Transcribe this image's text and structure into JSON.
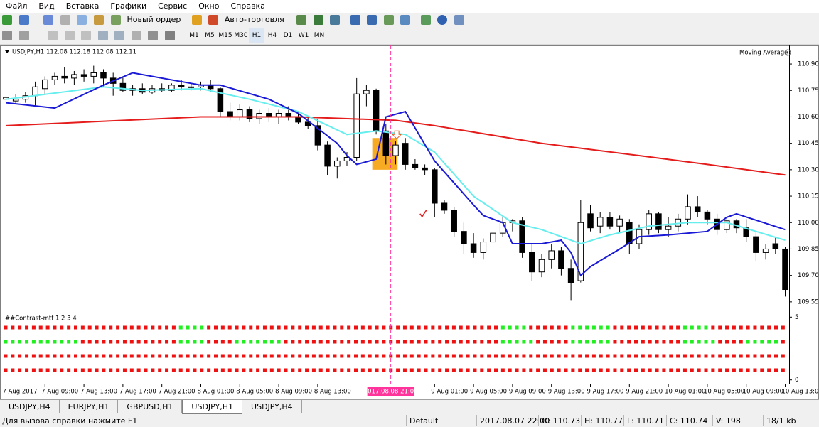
{
  "menu": [
    "Файл",
    "Вид",
    "Вставка",
    "Графики",
    "Сервис",
    "Окно",
    "Справка"
  ],
  "toolbar": {
    "new_order": "Новый ордер",
    "auto_trading": "Авто-торговля"
  },
  "timeframes": [
    "M1",
    "M5",
    "M15",
    "M30",
    "H1",
    "H4",
    "D1",
    "W1",
    "MN"
  ],
  "chart_header": "USDJPY,H1  112.08 112.18 112.08 112.11",
  "indicator_name": "Moving Average",
  "chart_data": {
    "type": "candlestick",
    "ohlc": [
      [
        110.7,
        110.72,
        110.68,
        110.71
      ],
      [
        110.69,
        110.73,
        110.67,
        110.7
      ],
      [
        110.7,
        110.74,
        110.68,
        110.72
      ],
      [
        110.72,
        110.8,
        110.66,
        110.77
      ],
      [
        110.76,
        110.83,
        110.73,
        110.81
      ],
      [
        110.81,
        110.85,
        110.78,
        110.83
      ],
      [
        110.83,
        110.88,
        110.79,
        110.82
      ],
      [
        110.82,
        110.86,
        110.78,
        110.84
      ],
      [
        110.84,
        110.87,
        110.8,
        110.83
      ],
      [
        110.83,
        110.89,
        110.79,
        110.85
      ],
      [
        110.85,
        110.87,
        110.77,
        110.82
      ],
      [
        110.82,
        110.85,
        110.72,
        110.79
      ],
      [
        110.79,
        110.83,
        110.74,
        110.75
      ],
      [
        110.75,
        110.78,
        110.72,
        110.76
      ],
      [
        110.76,
        110.79,
        110.73,
        110.74
      ],
      [
        110.74,
        110.78,
        110.73,
        110.76
      ],
      [
        110.76,
        110.79,
        110.74,
        110.75
      ],
      [
        110.75,
        110.79,
        110.74,
        110.78
      ],
      [
        110.78,
        110.81,
        110.75,
        110.77
      ],
      [
        110.77,
        110.79,
        110.75,
        110.77
      ],
      [
        110.77,
        110.8,
        110.75,
        110.78
      ],
      [
        110.78,
        110.81,
        110.74,
        110.76
      ],
      [
        110.76,
        110.77,
        110.6,
        110.63
      ],
      [
        110.63,
        110.68,
        110.58,
        110.6
      ],
      [
        110.6,
        110.67,
        110.58,
        110.64
      ],
      [
        110.64,
        110.66,
        110.57,
        110.59
      ],
      [
        110.59,
        110.64,
        110.56,
        110.62
      ],
      [
        110.62,
        110.65,
        110.57,
        110.6
      ],
      [
        110.6,
        110.64,
        110.56,
        110.62
      ],
      [
        110.62,
        110.66,
        110.58,
        110.6
      ],
      [
        110.6,
        110.62,
        110.56,
        110.57
      ],
      [
        110.57,
        110.6,
        110.53,
        110.55
      ],
      [
        110.55,
        110.59,
        110.41,
        110.44
      ],
      [
        110.44,
        110.46,
        110.27,
        110.32
      ],
      [
        110.32,
        110.37,
        110.25,
        110.35
      ],
      [
        110.35,
        110.4,
        110.32,
        110.37
      ],
      [
        110.37,
        110.82,
        110.35,
        110.73
      ],
      [
        110.73,
        110.78,
        110.66,
        110.75
      ],
      [
        110.75,
        110.76,
        110.5,
        110.52
      ],
      [
        110.52,
        110.56,
        110.33,
        110.38
      ],
      [
        110.38,
        110.46,
        110.33,
        110.44
      ],
      [
        110.45,
        110.48,
        110.3,
        110.33
      ],
      [
        110.33,
        110.36,
        110.3,
        110.31
      ],
      [
        110.31,
        110.33,
        110.27,
        110.3
      ],
      [
        110.3,
        110.31,
        110.03,
        110.11
      ],
      [
        110.11,
        110.13,
        110.05,
        110.07
      ],
      [
        110.07,
        110.09,
        109.92,
        109.95
      ],
      [
        109.95,
        110.0,
        109.82,
        109.88
      ],
      [
        109.88,
        109.94,
        109.8,
        109.83
      ],
      [
        109.83,
        109.91,
        109.79,
        109.89
      ],
      [
        109.89,
        109.98,
        109.82,
        109.94
      ],
      [
        109.94,
        110.04,
        109.92,
        110.0
      ],
      [
        110.0,
        110.02,
        109.95,
        110.01
      ],
      [
        110.01,
        110.03,
        109.8,
        109.83
      ],
      [
        109.83,
        109.88,
        109.67,
        109.72
      ],
      [
        109.72,
        109.82,
        109.69,
        109.79
      ],
      [
        109.79,
        109.88,
        109.74,
        109.84
      ],
      [
        109.84,
        109.86,
        109.7,
        109.74
      ],
      [
        109.74,
        109.79,
        109.56,
        109.66
      ],
      [
        109.67,
        110.13,
        109.66,
        110.0
      ],
      [
        110.05,
        110.1,
        109.95,
        109.97
      ],
      [
        109.98,
        110.06,
        109.94,
        110.03
      ],
      [
        110.03,
        110.06,
        109.96,
        109.98
      ],
      [
        109.98,
        110.04,
        109.94,
        110.02
      ],
      [
        110.0,
        110.02,
        109.82,
        109.88
      ],
      [
        109.88,
        109.99,
        109.85,
        109.96
      ],
      [
        109.96,
        110.07,
        109.93,
        110.05
      ],
      [
        110.05,
        110.06,
        109.94,
        109.96
      ],
      [
        109.96,
        110.03,
        109.92,
        109.98
      ],
      [
        109.98,
        110.05,
        109.95,
        110.02
      ],
      [
        110.02,
        110.16,
        109.99,
        110.09
      ],
      [
        110.09,
        110.15,
        110.03,
        110.06
      ],
      [
        110.06,
        110.07,
        109.99,
        110.02
      ],
      [
        110.02,
        110.05,
        109.93,
        109.96
      ],
      [
        109.96,
        110.02,
        109.94,
        110.01
      ],
      [
        110.01,
        110.02,
        109.94,
        109.97
      ],
      [
        109.97,
        110.02,
        109.89,
        109.92
      ],
      [
        109.92,
        109.95,
        109.78,
        109.83
      ],
      [
        109.83,
        109.88,
        109.79,
        109.85
      ],
      [
        109.88,
        109.92,
        109.82,
        109.85
      ],
      [
        109.85,
        109.86,
        109.58,
        109.62
      ]
    ],
    "lines": [
      {
        "color": "#e51c1c",
        "x": [
          0,
          20,
          30,
          40,
          44,
          55,
          65,
          72,
          80
        ],
        "values": [
          110.55,
          110.6,
          110.6,
          110.58,
          110.55,
          110.45,
          110.38,
          110.33,
          110.27
        ]
      },
      {
        "color": "#66eeee",
        "x": [
          0,
          10,
          14,
          20,
          25,
          30,
          35,
          38,
          41,
          44,
          48,
          52,
          55,
          59,
          62,
          66,
          70,
          74,
          80
        ],
        "values": [
          110.7,
          110.77,
          110.75,
          110.76,
          110.7,
          110.63,
          110.5,
          110.52,
          110.5,
          110.4,
          110.15,
          110.0,
          109.96,
          109.88,
          109.93,
          109.98,
          110.0,
          110.0,
          109.9
        ]
      },
      {
        "color": "#1a1ad6",
        "x": [
          0,
          5,
          10,
          13,
          20,
          22,
          27,
          30,
          34,
          35,
          36,
          38,
          39,
          41,
          44,
          48,
          49,
          51,
          52,
          55,
          57,
          58,
          59,
          60,
          63,
          65,
          68,
          72,
          74,
          75,
          80
        ],
        "values": [
          110.68,
          110.65,
          110.78,
          110.85,
          110.78,
          110.78,
          110.7,
          110.62,
          110.45,
          110.38,
          110.33,
          110.36,
          110.6,
          110.63,
          110.35,
          110.1,
          110.04,
          110.0,
          109.88,
          109.88,
          109.9,
          109.83,
          109.7,
          109.75,
          109.85,
          109.92,
          109.93,
          109.95,
          110.03,
          110.05,
          109.96
        ]
      }
    ],
    "ylim": [
      109.497,
      110.997
    ],
    "yticks": [
      {
        "value": 109.55,
        "label": "109.55"
      },
      {
        "value": 109.7,
        "label": "109.70"
      },
      {
        "value": 109.85,
        "label": "109.85"
      },
      {
        "value": 110,
        "label": "110.00"
      },
      {
        "value": 110.15,
        "label": "110.15"
      },
      {
        "value": 110.3,
        "label": "110.30"
      },
      {
        "value": 110.45,
        "label": "110.45"
      },
      {
        "value": 110.6,
        "label": "110.60"
      },
      {
        "value": 110.75,
        "label": "110.75"
      },
      {
        "value": 110.9,
        "label": "110.90"
      }
    ],
    "xlim": [
      -0.4,
      80.4
    ],
    "xticks": [
      {
        "value": 0,
        "label": "7 Aug 2017"
      },
      {
        "value": 4,
        "label": "7 Aug 09:00"
      },
      {
        "value": 8,
        "label": "7 Aug 13:00"
      },
      {
        "value": 12,
        "label": "7 Aug 17:00"
      },
      {
        "value": 16,
        "label": "7 Aug 21:00"
      },
      {
        "value": 20,
        "label": "8 Aug 01:00"
      },
      {
        "value": 24,
        "label": "8 Aug 05:00"
      },
      {
        "value": 28,
        "label": "8 Aug 09:00"
      },
      {
        "value": 32,
        "label": "8 Aug 13:00"
      },
      {
        "value": 44,
        "label": "9 Aug 01:00"
      },
      {
        "value": 48,
        "label": "9 Aug 05:00"
      },
      {
        "value": 52,
        "label": "9 Aug 09:00"
      },
      {
        "value": 56,
        "label": "9 Aug 13:00"
      },
      {
        "value": 60,
        "label": "9 Aug 17:00"
      },
      {
        "value": 64,
        "label": "9 Aug 21:00"
      },
      {
        "value": 68,
        "label": "10 Aug 01:00"
      },
      {
        "value": 72,
        "label": "10 Aug 05:00"
      },
      {
        "value": 76,
        "label": "10 Aug 09:00"
      },
      {
        "value": 80,
        "label": "10 Aug 13:00"
      }
    ],
    "crosshair": {
      "value": 39.5,
      "label": "2017.08.08 21:00"
    },
    "grid": false,
    "up_color": "#ffffff",
    "down_color": "#000000"
  },
  "subwindow": {
    "title": "##Contrast-mtf 1 2 3 4",
    "ylim": [
      -0.3,
      5.3
    ],
    "yticks": [
      0,
      5
    ]
  },
  "tabs": [
    "USDJPY,H4",
    "EURJPY,H1",
    "GBPUSD,H1",
    "USDJPY,H1",
    "USDJPY,H4"
  ],
  "status": [
    "Для вызова справки нажмите F1",
    "Default",
    "2017.08.07 22:00",
    "O: 110.73",
    "H: 110.77",
    "L: 110.71",
    "C: 110.74",
    "V: 198",
    "18/1 kb"
  ]
}
